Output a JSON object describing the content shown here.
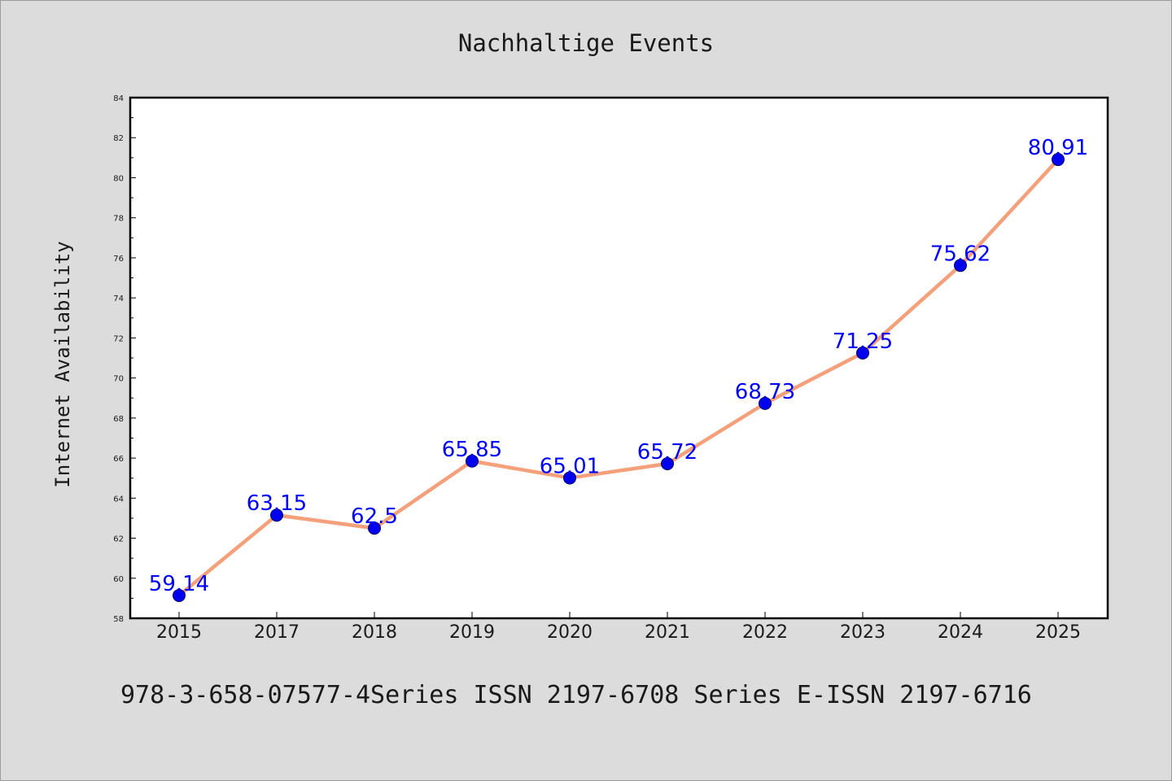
{
  "chart_data": {
    "type": "line",
    "title": "Nachhaltige Events",
    "xlabel": "",
    "ylabel": "Internet Availability",
    "categories": [
      "2015",
      "2017",
      "2018",
      "2019",
      "2020",
      "2021",
      "2022",
      "2023",
      "2024",
      "2025"
    ],
    "series": [
      {
        "values": [
          59.14,
          63.15,
          62.5,
          65.85,
          65.01,
          65.72,
          68.73,
          71.25,
          75.62,
          80.91
        ],
        "labels": [
          "59.14",
          "63.15",
          "62.5",
          "65.85",
          "65.01",
          "65.72",
          "68.73",
          "71.25",
          "75.62",
          "80.91"
        ],
        "line_color": "#f4a07a",
        "marker_color": "#0000ee",
        "label_color": "#0000ff"
      }
    ],
    "ylim": [
      58,
      84
    ],
    "yticks": [
      "58",
      "60",
      "62",
      "64",
      "66",
      "68",
      "70",
      "72",
      "74",
      "76",
      "78",
      "80",
      "82",
      "84"
    ],
    "grid": false,
    "legend": "none"
  },
  "footer_text": "978-3-658-07577-4Series ISSN 2197-6708 Series E-ISSN 2197-6716",
  "colors": {
    "background": "#dcdcdc",
    "plot_background": "#ffffff",
    "frame": "#000000"
  }
}
